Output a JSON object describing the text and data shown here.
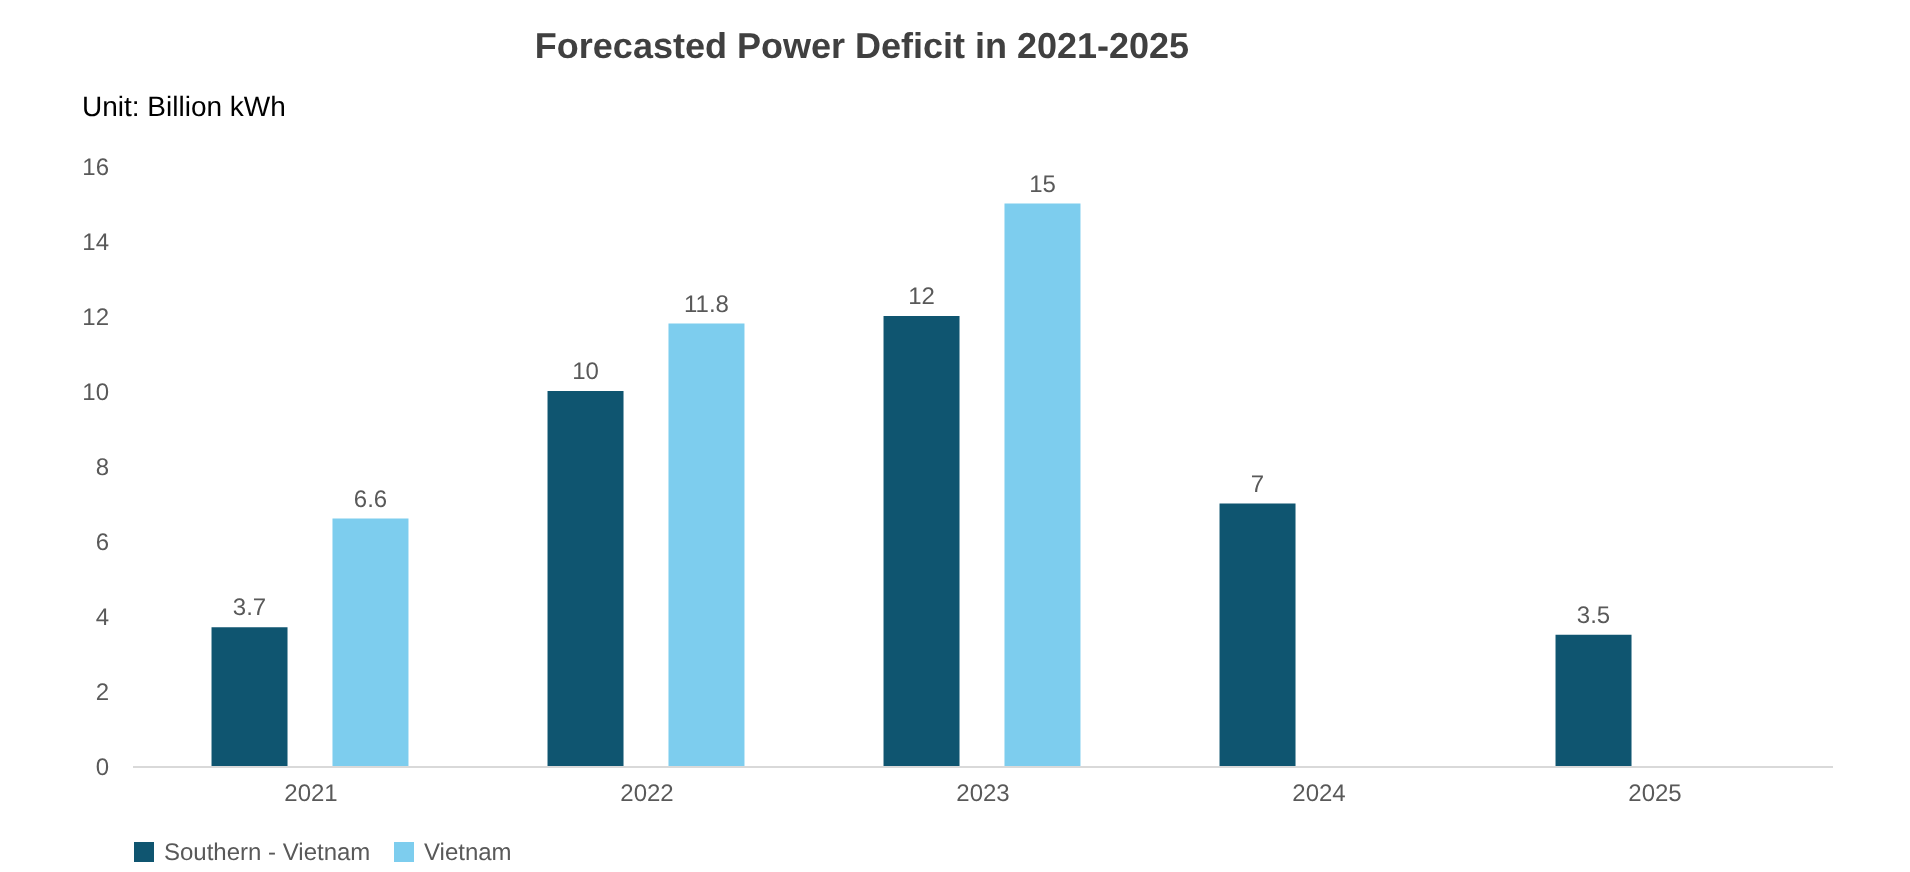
{
  "chart_data": {
    "type": "bar",
    "title": "Forecasted Power Deficit in 2021-2025",
    "annotations": [
      "Unit: Billion kWh"
    ],
    "categories": [
      "2021",
      "2022",
      "2023",
      "2024",
      "2025"
    ],
    "series": [
      {
        "name": "Southern - Vietnam",
        "color": "#0f5570",
        "values": [
          3.7,
          10,
          12,
          7,
          3.5
        ]
      },
      {
        "name": "Vietnam",
        "color": "#7dcdee",
        "values": [
          6.6,
          11.8,
          15,
          null,
          null
        ]
      }
    ],
    "ylim": [
      0,
      16
    ],
    "yticks": [
      0,
      2,
      4,
      6,
      8,
      10,
      12,
      14,
      16
    ],
    "data_labels": true,
    "grid": false,
    "legend": "bottom"
  }
}
